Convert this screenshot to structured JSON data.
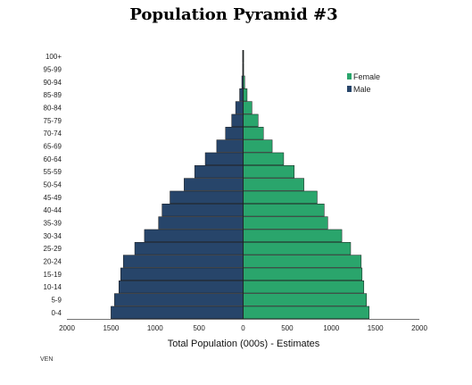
{
  "chart_data": {
    "type": "bar",
    "orientation": "horizontal-pyramid",
    "title": "Population Pyramid #3",
    "xlabel": "Total Population (000s) - Estimates",
    "ylabel": "",
    "footnote": "VEN",
    "xlim": [
      -2000,
      2000
    ],
    "x_ticks": [
      -2000,
      -1500,
      -1000,
      -500,
      0,
      500,
      1000,
      1500,
      2000
    ],
    "x_tick_labels": [
      "2000",
      "1500",
      "1000",
      "500",
      "0",
      "500",
      "1000",
      "1500",
      "2000"
    ],
    "categories": [
      "0-4",
      "5-9",
      "10-14",
      "15-19",
      "20-24",
      "25-29",
      "30-34",
      "35-39",
      "40-44",
      "45-49",
      "50-54",
      "55-59",
      "60-64",
      "65-69",
      "70-74",
      "75-79",
      "80-84",
      "85-89",
      "90-94",
      "95-99",
      "100+"
    ],
    "legend_position": "top-right",
    "grid": false,
    "series": [
      {
        "name": "Female",
        "color": "#2aa56c",
        "values": [
          1430,
          1400,
          1370,
          1350,
          1340,
          1220,
          1120,
          960,
          920,
          840,
          690,
          580,
          460,
          330,
          230,
          170,
          100,
          45,
          18,
          5,
          2
        ]
      },
      {
        "name": "Male",
        "color": "#27456a",
        "values": [
          1500,
          1460,
          1410,
          1390,
          1360,
          1230,
          1120,
          960,
          920,
          830,
          670,
          550,
          430,
          300,
          200,
          130,
          85,
          40,
          15,
          4,
          2
        ]
      }
    ]
  }
}
